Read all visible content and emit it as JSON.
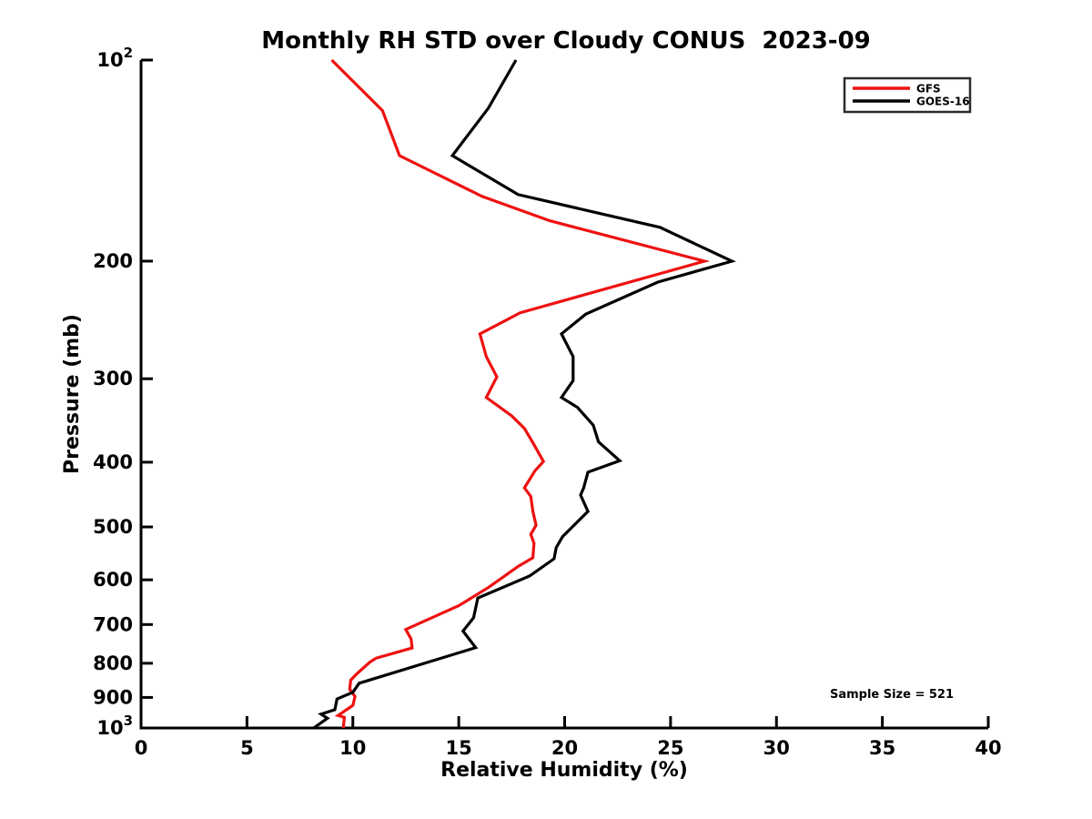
{
  "title": "Monthly RH STD over Cloudy CONUS  2023-09",
  "annotation": "Sample Size = 521",
  "legend": {
    "position": "top-right",
    "items": [
      {
        "label": "GFS",
        "color": "#ee1111"
      },
      {
        "label": "GOES-16",
        "color": "#000000"
      }
    ]
  },
  "chart_data": {
    "type": "line",
    "title": "Monthly RH STD over Cloudy CONUS  2023-09",
    "xlabel": "Relative Humidity (%)",
    "ylabel": "Pressure (mb)",
    "annotation": "Sample Size = 521",
    "grid": false,
    "legend_position": "top-right",
    "xlim": [
      0,
      40
    ],
    "x_ticks": [
      0,
      5,
      10,
      15,
      20,
      25,
      30,
      35,
      40
    ],
    "y_scale": "log",
    "y_axis_direction": "pressure-increasing-downward",
    "ylim": [
      100,
      1000
    ],
    "y_ticks": [
      {
        "value": 100,
        "label": "10^2"
      },
      {
        "value": 200,
        "label": "200"
      },
      {
        "value": 300,
        "label": "300"
      },
      {
        "value": 400,
        "label": "400"
      },
      {
        "value": 500,
        "label": "500"
      },
      {
        "value": 600,
        "label": "600"
      },
      {
        "value": 700,
        "label": "700"
      },
      {
        "value": 800,
        "label": "800"
      },
      {
        "value": 900,
        "label": "900"
      },
      {
        "value": 1000,
        "label": "10^3"
      }
    ],
    "point_format": "[pressure_mb, rh_std_percent]",
    "series": [
      {
        "name": "GFS",
        "color": "#ee1111",
        "points": [
          [
            100,
            9.0
          ],
          [
            119,
            11.4
          ],
          [
            139,
            12.2
          ],
          [
            160,
            16.1
          ],
          [
            174,
            19.3
          ],
          [
            200,
            26.6
          ],
          [
            239,
            17.9
          ],
          [
            257,
            16.0
          ],
          [
            278,
            16.3
          ],
          [
            298,
            16.8
          ],
          [
            320,
            16.3
          ],
          [
            341,
            17.5
          ],
          [
            356,
            18.1
          ],
          [
            374,
            18.5
          ],
          [
            399,
            19.0
          ],
          [
            412,
            18.6
          ],
          [
            437,
            18.1
          ],
          [
            450,
            18.4
          ],
          [
            474,
            18.5
          ],
          [
            497,
            18.65
          ],
          [
            513,
            18.4
          ],
          [
            529,
            18.55
          ],
          [
            556,
            18.5
          ],
          [
            573,
            17.8
          ],
          [
            616,
            16.4
          ],
          [
            656,
            15.0
          ],
          [
            712,
            12.5
          ],
          [
            736,
            12.75
          ],
          [
            759,
            12.8
          ],
          [
            786,
            11.1
          ],
          [
            797,
            10.8
          ],
          [
            829,
            10.2
          ],
          [
            848,
            9.9
          ],
          [
            875,
            9.85
          ],
          [
            897,
            10.1
          ],
          [
            925,
            10.0
          ],
          [
            958,
            9.3
          ],
          [
            964,
            9.6
          ],
          [
            1000,
            9.55
          ]
        ]
      },
      {
        "name": "GOES-16",
        "color": "#000000",
        "points": [
          [
            100,
            17.7
          ],
          [
            118,
            16.4
          ],
          [
            139,
            14.7
          ],
          [
            159,
            17.8
          ],
          [
            178,
            24.5
          ],
          [
            200,
            27.9
          ],
          [
            215,
            24.4
          ],
          [
            240,
            21.0
          ],
          [
            257,
            19.85
          ],
          [
            278,
            20.4
          ],
          [
            302,
            20.4
          ],
          [
            320,
            19.85
          ],
          [
            331,
            20.6
          ],
          [
            352,
            21.35
          ],
          [
            373,
            21.6
          ],
          [
            398,
            22.6
          ],
          [
            414,
            21.1
          ],
          [
            437,
            20.9
          ],
          [
            448,
            20.75
          ],
          [
            474,
            21.1
          ],
          [
            517,
            19.9
          ],
          [
            537,
            19.6
          ],
          [
            558,
            19.5
          ],
          [
            592,
            18.35
          ],
          [
            639,
            15.9
          ],
          [
            684,
            15.7
          ],
          [
            716,
            15.2
          ],
          [
            758,
            15.8
          ],
          [
            857,
            10.3
          ],
          [
            884,
            10.0
          ],
          [
            905,
            9.25
          ],
          [
            939,
            9.15
          ],
          [
            953,
            8.5
          ],
          [
            967,
            8.8
          ],
          [
            1000,
            8.15
          ]
        ]
      }
    ]
  }
}
